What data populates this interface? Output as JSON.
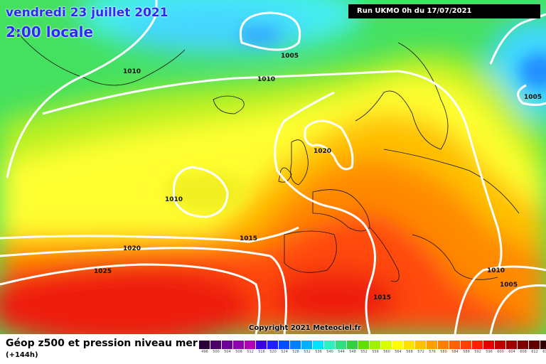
{
  "header": {
    "date": "vendredi 23 juillet 2021",
    "time": "2:00 locale",
    "run": "Run UKMO 0h du 17/07/2021"
  },
  "copyright": "Copyright 2021 Meteociel.fr",
  "footer": {
    "title": "Géop z500 et pression niveau mer",
    "subtitle": "(+144h)"
  },
  "isobar_labels": [
    "1010",
    "1005",
    "1010",
    "1005",
    "1020",
    "1010",
    "1015",
    "1020",
    "1025",
    "1015",
    "1010",
    "1005"
  ],
  "legend": {
    "labels": [
      "496",
      "500",
      "504",
      "508",
      "512",
      "516",
      "520",
      "524",
      "528",
      "532",
      "536",
      "540",
      "544",
      "548",
      "552",
      "556",
      "560",
      "564",
      "568",
      "572",
      "576",
      "580",
      "584",
      "588",
      "592",
      "596",
      "600",
      "604",
      "608",
      "612",
      "616"
    ],
    "colors": [
      "#2b0036",
      "#4a0066",
      "#6d0099",
      "#9000b0",
      "#b400b4",
      "#3b00e0",
      "#2020ff",
      "#0050ff",
      "#0080ff",
      "#00b0ff",
      "#00e0ff",
      "#30f0c0",
      "#30e080",
      "#30d040",
      "#60e000",
      "#a0f000",
      "#d8ff00",
      "#ffff00",
      "#ffe000",
      "#ffc000",
      "#ffa000",
      "#ff8000",
      "#ff6000",
      "#ff4000",
      "#ff2000",
      "#e00000",
      "#c00000",
      "#a00000",
      "#800000",
      "#600000",
      "#300000"
    ]
  }
}
